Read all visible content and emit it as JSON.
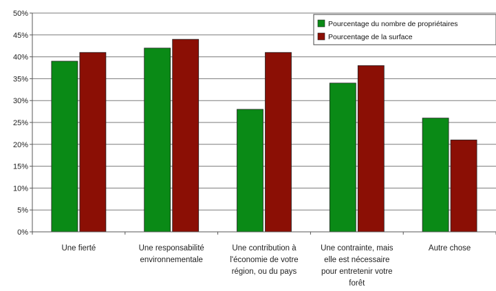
{
  "chart_data": {
    "type": "bar",
    "categories": [
      [
        "Une fierté"
      ],
      [
        "Une responsabilité",
        "environnementale"
      ],
      [
        "Une contribution à",
        "l'économie de votre",
        "région, ou du pays"
      ],
      [
        "Une contrainte, mais",
        "elle est nécessaire",
        "pour entretenir votre",
        "forêt"
      ],
      [
        "Autre chose"
      ]
    ],
    "series": [
      {
        "name": "Pourcentage du  nombre de propriétaires",
        "color": "#0a8a16",
        "values": [
          39,
          42,
          28,
          34,
          26
        ]
      },
      {
        "name": "Pourcentage de la surface",
        "color": "#8b0f05",
        "values": [
          41,
          44,
          41,
          38,
          21
        ]
      }
    ],
    "ylim": [
      0,
      50
    ],
    "ytick_step": 5,
    "ytick_format": "%",
    "grid": true,
    "legend_position": "top-right",
    "title": "",
    "xlabel": "",
    "ylabel": ""
  }
}
